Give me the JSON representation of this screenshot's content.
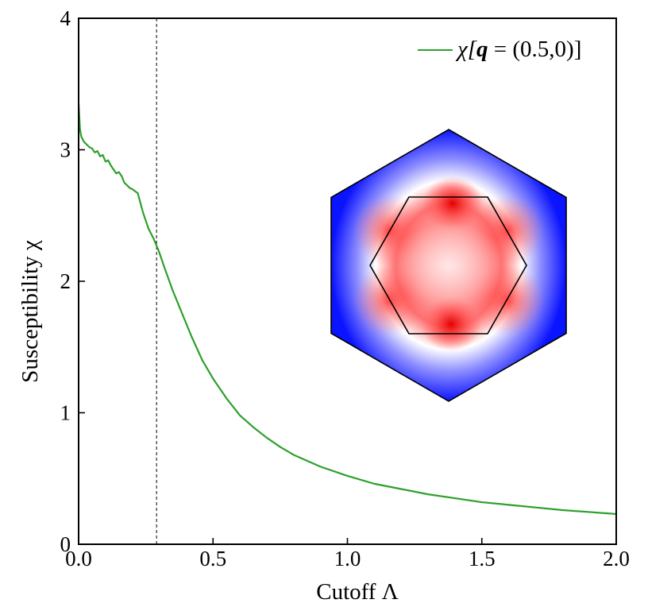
{
  "chart_data": {
    "type": "line",
    "xlabel": "Cutoff Λ",
    "ylabel": "Susceptibility χ",
    "xlim": [
      0.0,
      2.0
    ],
    "ylim": [
      0,
      4
    ],
    "x_ticks": [
      "0.0",
      "0.5",
      "1.0",
      "1.5",
      "2.0"
    ],
    "x_tick_values": [
      0.0,
      0.5,
      1.0,
      1.5,
      2.0
    ],
    "y_ticks": [
      "0",
      "1",
      "2",
      "3",
      "4"
    ],
    "y_tick_values": [
      0,
      1,
      2,
      3,
      4
    ],
    "grid": false,
    "legend_position": "top-right",
    "vline_x": 0.29,
    "legend": {
      "chi": "χ[",
      "q": "q",
      "rest": " = (0.5,0)]"
    },
    "series": [
      {
        "name": "χ[q = (0.5,0)]",
        "color": "#2ca02c",
        "x": [
          0.0,
          0.005,
          0.01,
          0.02,
          0.03,
          0.04,
          0.05,
          0.06,
          0.07,
          0.08,
          0.09,
          0.1,
          0.11,
          0.12,
          0.13,
          0.14,
          0.15,
          0.16,
          0.17,
          0.18,
          0.19,
          0.2,
          0.22,
          0.24,
          0.26,
          0.28,
          0.3,
          0.32,
          0.35,
          0.38,
          0.42,
          0.46,
          0.5,
          0.55,
          0.6,
          0.65,
          0.7,
          0.75,
          0.8,
          0.9,
          1.0,
          1.1,
          1.2,
          1.3,
          1.4,
          1.5,
          1.6,
          1.7,
          1.8,
          1.9,
          2.0
        ],
        "y": [
          3.35,
          3.16,
          3.1,
          3.06,
          3.04,
          3.02,
          3.01,
          2.98,
          2.99,
          2.95,
          2.96,
          2.91,
          2.92,
          2.88,
          2.85,
          2.82,
          2.83,
          2.8,
          2.75,
          2.73,
          2.71,
          2.7,
          2.67,
          2.52,
          2.4,
          2.32,
          2.22,
          2.1,
          1.93,
          1.78,
          1.58,
          1.4,
          1.26,
          1.11,
          0.98,
          0.89,
          0.81,
          0.74,
          0.68,
          0.59,
          0.52,
          0.46,
          0.42,
          0.38,
          0.35,
          0.32,
          0.3,
          0.28,
          0.26,
          0.245,
          0.23
        ]
      }
    ]
  }
}
